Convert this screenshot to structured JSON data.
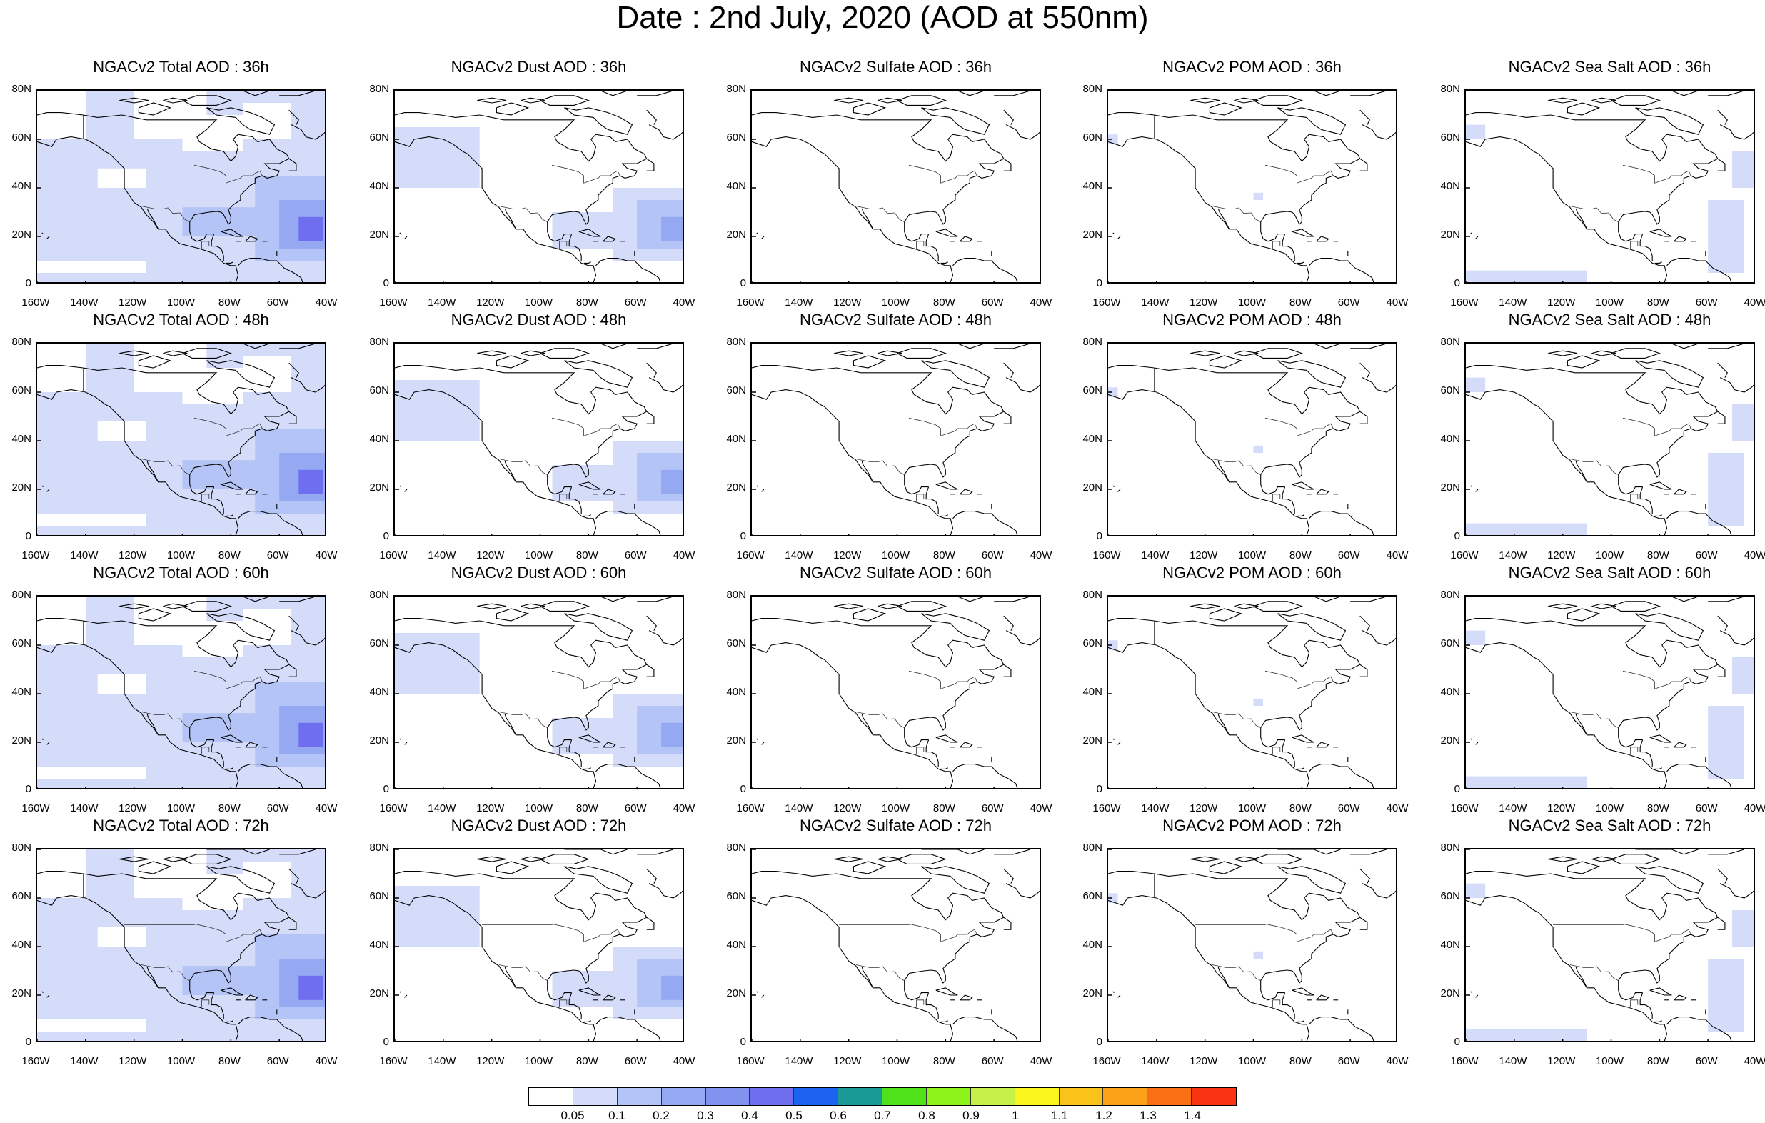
{
  "title": "Date : 2nd July, 2020 (AOD at 550nm)",
  "lat_ticks": [
    "80N",
    "60N",
    "40N",
    "20N",
    "0"
  ],
  "lon_ticks": [
    "160W",
    "140W",
    "120W",
    "100W",
    "80W",
    "60W",
    "40W"
  ],
  "rows": [
    {
      "hour": "36h",
      "panels": [
        {
          "title": "NGACv2 Total AOD : 36h",
          "species": "total"
        },
        {
          "title": "NGACv2 Dust AOD : 36h",
          "species": "dust"
        },
        {
          "title": "NGACv2 Sulfate AOD : 36h",
          "species": "sulfate"
        },
        {
          "title": "NGACv2 POM AOD : 36h",
          "species": "pom"
        },
        {
          "title": "NGACv2 Sea Salt AOD : 36h",
          "species": "seasalt"
        }
      ]
    },
    {
      "hour": "48h",
      "panels": [
        {
          "title": "NGACv2 Total AOD : 48h",
          "species": "total"
        },
        {
          "title": "NGACv2 Dust AOD : 48h",
          "species": "dust"
        },
        {
          "title": "NGACv2 Sulfate AOD : 48h",
          "species": "sulfate"
        },
        {
          "title": "NGACv2 POM AOD : 48h",
          "species": "pom"
        },
        {
          "title": "NGACv2 Sea Salt AOD : 48h",
          "species": "seasalt"
        }
      ]
    },
    {
      "hour": "60h",
      "panels": [
        {
          "title": "NGACv2 Total AOD : 60h",
          "species": "total"
        },
        {
          "title": "NGACv2 Dust AOD : 60h",
          "species": "dust"
        },
        {
          "title": "NGACv2 Sulfate AOD : 60h",
          "species": "sulfate"
        },
        {
          "title": "NGACv2 POM AOD : 60h",
          "species": "pom"
        },
        {
          "title": "NGACv2 Sea Salt AOD : 60h",
          "species": "seasalt"
        }
      ]
    },
    {
      "hour": "72h",
      "panels": [
        {
          "title": "NGACv2 Total AOD : 72h",
          "species": "total"
        },
        {
          "title": "NGACv2 Dust AOD : 72h",
          "species": "dust"
        },
        {
          "title": "NGACv2 Sulfate AOD : 72h",
          "species": "sulfate"
        },
        {
          "title": "NGACv2 POM AOD : 72h",
          "species": "pom"
        },
        {
          "title": "NGACv2 Sea Salt  AOD : 72h",
          "species": "seasalt"
        }
      ]
    }
  ],
  "colorbar": {
    "colors": [
      "#ffffff",
      "#d4dcfa",
      "#b4c4f6",
      "#95a9f3",
      "#8292f1",
      "#6e6eef",
      "#1d63f2",
      "#1a9a96",
      "#4fe21a",
      "#8ef21b",
      "#c8f04a",
      "#faf61c",
      "#fbc21a",
      "#fba218",
      "#f97015",
      "#fa3413"
    ],
    "labels": [
      "0.05",
      "0.1",
      "0.2",
      "0.3",
      "0.4",
      "0.5",
      "0.6",
      "0.7",
      "0.8",
      "0.9",
      "1",
      "1.1",
      "1.2",
      "1.3",
      "1.4"
    ]
  }
}
